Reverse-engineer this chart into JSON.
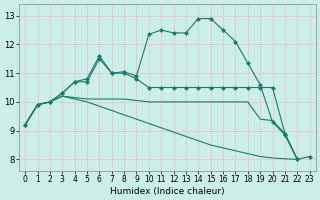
{
  "xlabel": "Humidex (Indice chaleur)",
  "bg_color": "#cceee8",
  "grid_color": "#e8c8c8",
  "line_color": "#1a7a6e",
  "marker": "D",
  "marker_size": 2.5,
  "xlim": [
    -0.5,
    23.5
  ],
  "ylim": [
    7.6,
    13.4
  ],
  "xticks": [
    0,
    1,
    2,
    3,
    4,
    5,
    6,
    7,
    8,
    9,
    10,
    11,
    12,
    13,
    14,
    15,
    16,
    17,
    18,
    19,
    20,
    21,
    22,
    23
  ],
  "yticks": [
    8,
    9,
    10,
    11,
    12,
    13
  ],
  "lines": [
    {
      "x": [
        0,
        1,
        2,
        3,
        4,
        5,
        6,
        7,
        8,
        9,
        10,
        11,
        12,
        13,
        14,
        15,
        16,
        17,
        18,
        19,
        20,
        21,
        22,
        23
      ],
      "y": [
        9.2,
        9.9,
        10.0,
        10.3,
        10.7,
        10.8,
        11.6,
        11.0,
        11.05,
        10.9,
        12.35,
        12.5,
        12.4,
        12.4,
        12.9,
        12.9,
        12.5,
        12.1,
        11.35,
        10.6,
        9.3,
        8.85,
        8.0,
        8.1
      ],
      "has_markers": true
    },
    {
      "x": [
        0,
        1,
        2,
        3,
        4,
        5,
        6,
        7,
        8,
        9,
        10,
        11,
        12,
        13,
        14,
        15,
        16,
        17,
        18,
        19,
        20,
        21,
        22
      ],
      "y": [
        9.2,
        9.9,
        10.0,
        10.3,
        10.7,
        10.7,
        11.5,
        11.0,
        11.0,
        10.8,
        10.5,
        10.5,
        10.5,
        10.5,
        10.5,
        10.5,
        10.5,
        10.5,
        10.5,
        10.5,
        10.5,
        8.9,
        8.0
      ],
      "has_markers": true
    },
    {
      "x": [
        0,
        1,
        2,
        3,
        4,
        5,
        6,
        7,
        8,
        9,
        10,
        11,
        12,
        13,
        14,
        15,
        16,
        17,
        18,
        19,
        20,
        21,
        22
      ],
      "y": [
        9.2,
        9.9,
        10.0,
        10.2,
        10.15,
        10.1,
        10.1,
        10.1,
        10.1,
        10.05,
        10.0,
        10.0,
        10.0,
        10.0,
        10.0,
        10.0,
        10.0,
        10.0,
        10.0,
        9.4,
        9.35,
        8.9,
        8.0
      ],
      "has_markers": false
    },
    {
      "x": [
        0,
        1,
        2,
        3,
        4,
        5,
        6,
        7,
        8,
        9,
        10,
        11,
        12,
        13,
        14,
        15,
        16,
        17,
        18,
        19,
        20,
        21,
        22
      ],
      "y": [
        9.2,
        9.9,
        10.0,
        10.2,
        10.1,
        10.0,
        9.85,
        9.7,
        9.55,
        9.4,
        9.25,
        9.1,
        8.95,
        8.8,
        8.65,
        8.5,
        8.4,
        8.3,
        8.2,
        8.1,
        8.05,
        8.02,
        8.0
      ],
      "has_markers": false
    }
  ]
}
